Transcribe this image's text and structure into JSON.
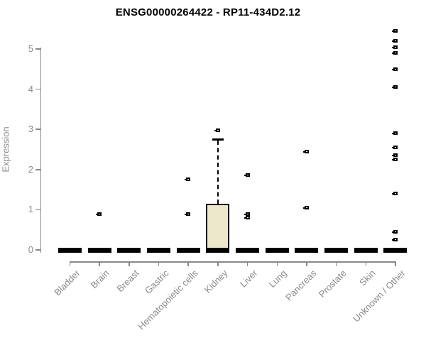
{
  "title": "ENSG00000264422 - RP11-434D2.12",
  "chart_data": {
    "type": "boxplot",
    "title": "ENSG00000264422 - RP11-434D2.12",
    "xlabel": "",
    "ylabel": "Expression",
    "ylim": [
      0,
      5.5
    ],
    "yticks": [
      0,
      1,
      2,
      3,
      4,
      5
    ],
    "grid": false,
    "legend": null,
    "colors": {
      "box_fill": "#EDE8CC",
      "box_border": "#000000",
      "median": "#000000",
      "axis": "#888888",
      "tick_label": "#8a8a8a",
      "title": "#000000"
    },
    "categories": [
      "Bladder",
      "Brain",
      "Breast",
      "Gastric",
      "Hematopoietic cells",
      "Kidney",
      "Liver",
      "Lung",
      "Pancreas",
      "Prostate",
      "Skin",
      "Unknown / Other"
    ],
    "boxes": [
      {
        "category": "Bladder",
        "q1": 0,
        "median": 0,
        "q3": 0,
        "whisker_low": 0,
        "whisker_high": 0,
        "outliers": []
      },
      {
        "category": "Brain",
        "q1": 0,
        "median": 0,
        "q3": 0,
        "whisker_low": 0,
        "whisker_high": 0,
        "outliers": [
          0.9
        ]
      },
      {
        "category": "Breast",
        "q1": 0,
        "median": 0,
        "q3": 0,
        "whisker_low": 0,
        "whisker_high": 0,
        "outliers": []
      },
      {
        "category": "Gastric",
        "q1": 0,
        "median": 0,
        "q3": 0,
        "whisker_low": 0,
        "whisker_high": 0,
        "outliers": []
      },
      {
        "category": "Hematopoietic cells",
        "q1": 0,
        "median": 0,
        "q3": 0,
        "whisker_low": 0,
        "whisker_high": 0,
        "outliers": [
          1.75,
          0.9
        ]
      },
      {
        "category": "Kidney",
        "q1": 0,
        "median": 0,
        "q3": 1.15,
        "whisker_low": 0,
        "whisker_high": 2.75,
        "outliers": [
          2.97
        ]
      },
      {
        "category": "Liver",
        "q1": 0,
        "median": 0,
        "q3": 0,
        "whisker_low": 0,
        "whisker_high": 0,
        "outliers": [
          1.87,
          0.9,
          0.8
        ]
      },
      {
        "category": "Lung",
        "q1": 0,
        "median": 0,
        "q3": 0,
        "whisker_low": 0,
        "whisker_high": 0,
        "outliers": []
      },
      {
        "category": "Pancreas",
        "q1": 0,
        "median": 0,
        "q3": 0,
        "whisker_low": 0,
        "whisker_high": 0,
        "outliers": [
          2.45,
          1.05
        ]
      },
      {
        "category": "Prostate",
        "q1": 0,
        "median": 0,
        "q3": 0,
        "whisker_low": 0,
        "whisker_high": 0,
        "outliers": []
      },
      {
        "category": "Skin",
        "q1": 0,
        "median": 0,
        "q3": 0,
        "whisker_low": 0,
        "whisker_high": 0,
        "outliers": []
      },
      {
        "category": "Unknown / Other",
        "q1": 0,
        "median": 0,
        "q3": 0,
        "whisker_low": 0,
        "whisker_high": 0,
        "outliers": [
          5.45,
          5.2,
          5.05,
          4.9,
          4.5,
          4.05,
          2.9,
          2.55,
          2.35,
          2.25,
          1.4,
          0.45,
          0.25
        ]
      }
    ]
  }
}
